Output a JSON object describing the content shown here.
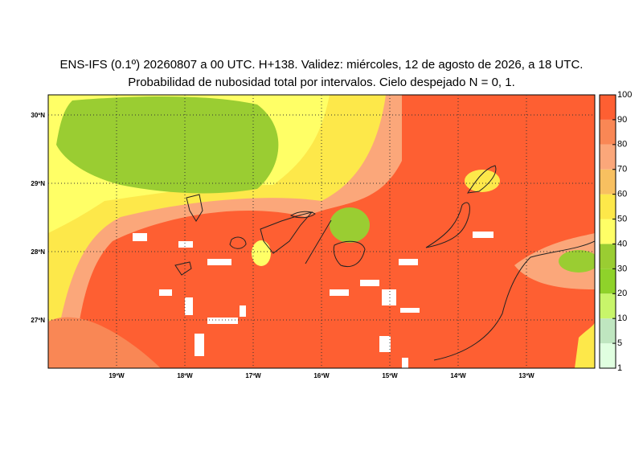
{
  "header": {
    "title_line_1": "ENS-IFS (0.1º) 20260807 a 00 UTC. H+138. Validez: miércoles, 12 de agosto de 2026, a 18 UTC.",
    "title_line_2": "Probabilidad de nubosidad total por intervalos. Cielo despejado N = 0, 1."
  },
  "map": {
    "lat_labels": [
      "30ºN",
      "29ºN",
      "28ºN",
      "27ºN"
    ],
    "lon_labels": [
      "19ºW",
      "18ºW",
      "17ºW",
      "16ºW",
      "15ºW",
      "14ºW",
      "13ºW"
    ]
  },
  "colorbar": {
    "ticks": [
      1,
      5,
      10,
      20,
      30,
      40,
      50,
      60,
      70,
      80,
      90,
      100
    ],
    "colors": [
      "#e0ffe0",
      "#bfe6c0",
      "#c8f56a",
      "#8fd22a",
      "#9acd32",
      "#ffff66",
      "#fde84a",
      "#f8c060",
      "#fba77a",
      "#f98755",
      "#fe5f32"
    ]
  }
}
